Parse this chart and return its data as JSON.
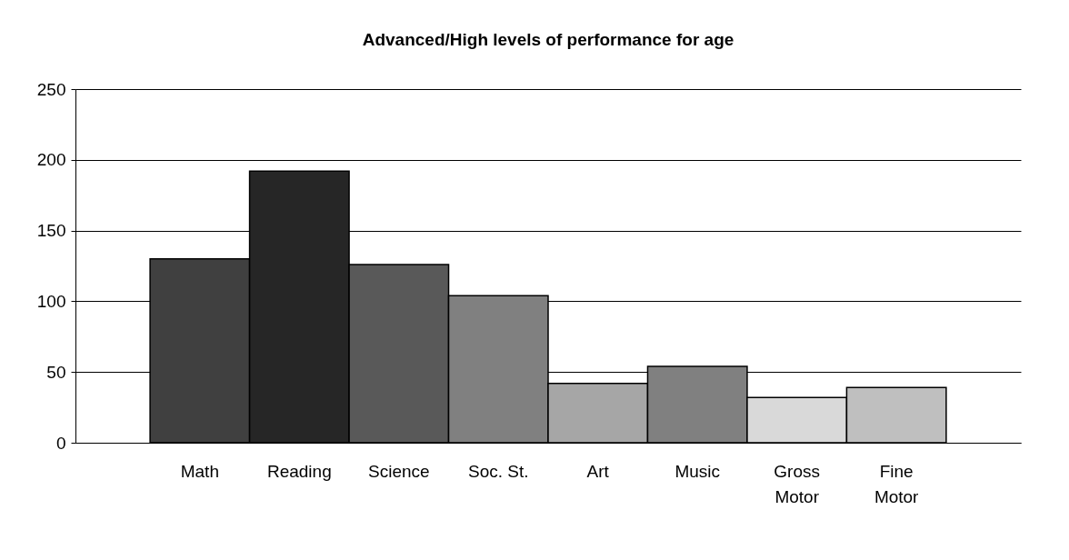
{
  "chart_data": {
    "type": "bar",
    "title": "Advanced/High levels of performance for age",
    "categories": [
      "Math",
      "Reading",
      "Science",
      "Soc. St.",
      "Art",
      "Music",
      "Gross Motor",
      "Fine Motor"
    ],
    "values": [
      130,
      192,
      126,
      104,
      42,
      54,
      32,
      39
    ],
    "colors": [
      "#404040",
      "#262626",
      "#595959",
      "#808080",
      "#a6a6a6",
      "#808080",
      "#d9d9d9",
      "#bfbfbf"
    ],
    "ylim": [
      0,
      250
    ],
    "yticks": [
      0,
      50,
      100,
      150,
      200,
      250
    ],
    "grid": "y",
    "legend": false
  }
}
